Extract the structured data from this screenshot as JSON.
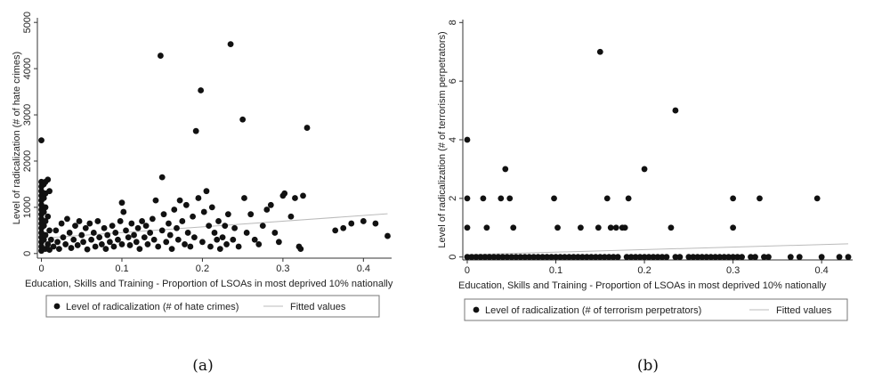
{
  "captions": [
    "(a)",
    "(b)"
  ],
  "chart_data": [
    {
      "type": "scatter",
      "xlabel": "Education, Skills and Training - Proportion of LSOAs in most deprived 10% nationally",
      "ylabel": "Level of radicalization (# of hate crimes)",
      "xlim": [
        -0.005,
        0.435
      ],
      "ylim": [
        -100,
        5100
      ],
      "xticks": [
        0,
        0.1,
        0.2,
        0.3,
        0.4
      ],
      "xtick_labels": [
        "0",
        "0.1",
        "0.2",
        "0.3",
        "0.4"
      ],
      "yticks": [
        0,
        1000,
        2000,
        3000,
        4000,
        5000
      ],
      "ytick_labels": [
        "0",
        "1000",
        "2000",
        "3000",
        "4000",
        "5000"
      ],
      "legend": {
        "placement": "bottom",
        "entries": [
          "Level of radicalization (# of hate crimes)",
          "Fitted values"
        ]
      },
      "fit": {
        "x": [
          0,
          0.43
        ],
        "y": [
          330,
          860
        ]
      },
      "series": [
        {
          "name": "Level of radicalization (# of hate crimes)",
          "points": [
            [
              0.0,
              2450
            ],
            [
              0.0,
              1550
            ],
            [
              0.0,
              1450
            ],
            [
              0.0,
              1350
            ],
            [
              0.0,
              1250
            ],
            [
              0.0,
              1150
            ],
            [
              0.0,
              1050
            ],
            [
              0.0,
              950
            ],
            [
              0.0,
              850
            ],
            [
              0.0,
              750
            ],
            [
              0.0,
              650
            ],
            [
              0.0,
              550
            ],
            [
              0.0,
              450
            ],
            [
              0.0,
              350
            ],
            [
              0.0,
              250
            ],
            [
              0.0,
              150
            ],
            [
              0.0,
              60
            ],
            [
              0.003,
              1500
            ],
            [
              0.003,
              1200
            ],
            [
              0.003,
              900
            ],
            [
              0.003,
              600
            ],
            [
              0.003,
              300
            ],
            [
              0.005,
              1550
            ],
            [
              0.005,
              1300
            ],
            [
              0.005,
              1000
            ],
            [
              0.005,
              700
            ],
            [
              0.005,
              400
            ],
            [
              0.005,
              100
            ],
            [
              0.008,
              1600
            ],
            [
              0.008,
              800
            ],
            [
              0.008,
              200
            ],
            [
              0.01,
              1350
            ],
            [
              0.01,
              500
            ],
            [
              0.01,
              80
            ],
            [
              0.012,
              300
            ],
            [
              0.015,
              150
            ],
            [
              0.018,
              500
            ],
            [
              0.02,
              250
            ],
            [
              0.022,
              100
            ],
            [
              0.025,
              650
            ],
            [
              0.027,
              350
            ],
            [
              0.03,
              200
            ],
            [
              0.032,
              750
            ],
            [
              0.035,
              450
            ],
            [
              0.037,
              120
            ],
            [
              0.04,
              300
            ],
            [
              0.042,
              600
            ],
            [
              0.045,
              180
            ],
            [
              0.047,
              700
            ],
            [
              0.05,
              400
            ],
            [
              0.052,
              250
            ],
            [
              0.055,
              550
            ],
            [
              0.057,
              90
            ],
            [
              0.06,
              650
            ],
            [
              0.062,
              300
            ],
            [
              0.065,
              450
            ],
            [
              0.067,
              150
            ],
            [
              0.07,
              700
            ],
            [
              0.072,
              350
            ],
            [
              0.075,
              200
            ],
            [
              0.078,
              550
            ],
            [
              0.08,
              100
            ],
            [
              0.082,
              400
            ],
            [
              0.085,
              250
            ],
            [
              0.088,
              600
            ],
            [
              0.09,
              150
            ],
            [
              0.092,
              450
            ],
            [
              0.095,
              300
            ],
            [
              0.098,
              700
            ],
            [
              0.1,
              200
            ],
            [
              0.1,
              1100
            ],
            [
              0.102,
              900
            ],
            [
              0.105,
              500
            ],
            [
              0.108,
              350
            ],
            [
              0.11,
              180
            ],
            [
              0.112,
              650
            ],
            [
              0.115,
              400
            ],
            [
              0.118,
              250
            ],
            [
              0.12,
              550
            ],
            [
              0.122,
              100
            ],
            [
              0.125,
              700
            ],
            [
              0.128,
              350
            ],
            [
              0.13,
              600
            ],
            [
              0.132,
              200
            ],
            [
              0.135,
              450
            ],
            [
              0.138,
              750
            ],
            [
              0.14,
              300
            ],
            [
              0.142,
              1150
            ],
            [
              0.145,
              150
            ],
            [
              0.148,
              4280
            ],
            [
              0.15,
              1650
            ],
            [
              0.15,
              500
            ],
            [
              0.152,
              850
            ],
            [
              0.155,
              250
            ],
            [
              0.158,
              650
            ],
            [
              0.16,
              400
            ],
            [
              0.162,
              100
            ],
            [
              0.165,
              950
            ],
            [
              0.168,
              550
            ],
            [
              0.17,
              300
            ],
            [
              0.172,
              1150
            ],
            [
              0.175,
              700
            ],
            [
              0.178,
              200
            ],
            [
              0.18,
              1050
            ],
            [
              0.182,
              450
            ],
            [
              0.185,
              150
            ],
            [
              0.188,
              800
            ],
            [
              0.19,
              350
            ],
            [
              0.192,
              2650
            ],
            [
              0.195,
              1200
            ],
            [
              0.198,
              3530
            ],
            [
              0.2,
              250
            ],
            [
              0.202,
              900
            ],
            [
              0.205,
              1350
            ],
            [
              0.208,
              600
            ],
            [
              0.21,
              150
            ],
            [
              0.212,
              1000
            ],
            [
              0.215,
              450
            ],
            [
              0.218,
              300
            ],
            [
              0.22,
              700
            ],
            [
              0.222,
              100
            ],
            [
              0.225,
              350
            ],
            [
              0.228,
              600
            ],
            [
              0.23,
              200
            ],
            [
              0.232,
              850
            ],
            [
              0.235,
              4530
            ],
            [
              0.238,
              300
            ],
            [
              0.24,
              550
            ],
            [
              0.245,
              150
            ],
            [
              0.25,
              2900
            ],
            [
              0.252,
              1200
            ],
            [
              0.255,
              450
            ],
            [
              0.26,
              850
            ],
            [
              0.265,
              300
            ],
            [
              0.27,
              200
            ],
            [
              0.275,
              600
            ],
            [
              0.28,
              950
            ],
            [
              0.285,
              1050
            ],
            [
              0.29,
              450
            ],
            [
              0.295,
              250
            ],
            [
              0.3,
              1250
            ],
            [
              0.302,
              1300
            ],
            [
              0.31,
              800
            ],
            [
              0.315,
              1200
            ],
            [
              0.32,
              150
            ],
            [
              0.322,
              100
            ],
            [
              0.325,
              1250
            ],
            [
              0.33,
              2720
            ],
            [
              0.365,
              500
            ],
            [
              0.375,
              550
            ],
            [
              0.385,
              650
            ],
            [
              0.4,
              700
            ],
            [
              0.415,
              650
            ],
            [
              0.43,
              380
            ]
          ]
        }
      ]
    },
    {
      "type": "scatter",
      "xlabel": "Education, Skills and Training - Proportion of LSOAs in most deprived 10% nationally",
      "ylabel": "Level of radicalization (# of terrorism perpetrators)",
      "xlim": [
        -0.005,
        0.435
      ],
      "ylim": [
        -0.1,
        8.1
      ],
      "xticks": [
        0,
        0.1,
        0.2,
        0.3,
        0.4
      ],
      "xtick_labels": [
        "0",
        "0.1",
        "0.2",
        "0.3",
        "0.4"
      ],
      "yticks": [
        0,
        2,
        4,
        6,
        8
      ],
      "ytick_labels": [
        "0",
        "2",
        "4",
        "6",
        "8"
      ],
      "legend": {
        "placement": "bottom",
        "entries": [
          "Level of radicalization (# of terrorism perpetrators)",
          "Fitted values"
        ]
      },
      "fit": {
        "x": [
          0,
          0.43
        ],
        "y": [
          0.08,
          0.45
        ]
      },
      "series": [
        {
          "name": "Level of radicalization (# of terrorism perpetrators)",
          "points": [
            [
              0.0,
              4
            ],
            [
              0.0,
              2
            ],
            [
              0.0,
              1
            ],
            [
              0.0,
              0
            ],
            [
              0.005,
              0
            ],
            [
              0.01,
              0
            ],
            [
              0.015,
              0
            ],
            [
              0.018,
              2
            ],
            [
              0.02,
              0
            ],
            [
              0.022,
              1
            ],
            [
              0.025,
              0
            ],
            [
              0.03,
              0
            ],
            [
              0.035,
              0
            ],
            [
              0.038,
              2
            ],
            [
              0.04,
              0
            ],
            [
              0.043,
              3
            ],
            [
              0.045,
              0
            ],
            [
              0.048,
              2
            ],
            [
              0.05,
              0
            ],
            [
              0.052,
              1
            ],
            [
              0.055,
              0
            ],
            [
              0.06,
              0
            ],
            [
              0.065,
              0
            ],
            [
              0.07,
              0
            ],
            [
              0.075,
              0
            ],
            [
              0.08,
              0
            ],
            [
              0.085,
              0
            ],
            [
              0.09,
              0
            ],
            [
              0.095,
              0
            ],
            [
              0.098,
              2
            ],
            [
              0.1,
              0
            ],
            [
              0.102,
              1
            ],
            [
              0.105,
              0
            ],
            [
              0.11,
              0
            ],
            [
              0.115,
              0
            ],
            [
              0.12,
              0
            ],
            [
              0.125,
              0
            ],
            [
              0.128,
              1
            ],
            [
              0.13,
              0
            ],
            [
              0.135,
              0
            ],
            [
              0.14,
              0
            ],
            [
              0.145,
              0
            ],
            [
              0.148,
              1
            ],
            [
              0.15,
              7
            ],
            [
              0.15,
              0
            ],
            [
              0.155,
              0
            ],
            [
              0.158,
              2
            ],
            [
              0.16,
              0
            ],
            [
              0.162,
              1
            ],
            [
              0.165,
              0
            ],
            [
              0.168,
              1
            ],
            [
              0.17,
              0
            ],
            [
              0.175,
              1
            ],
            [
              0.178,
              1
            ],
            [
              0.18,
              0
            ],
            [
              0.182,
              2
            ],
            [
              0.185,
              0
            ],
            [
              0.19,
              0
            ],
            [
              0.195,
              0
            ],
            [
              0.2,
              3
            ],
            [
              0.2,
              0
            ],
            [
              0.205,
              0
            ],
            [
              0.21,
              0
            ],
            [
              0.215,
              0
            ],
            [
              0.22,
              0
            ],
            [
              0.225,
              0
            ],
            [
              0.23,
              1
            ],
            [
              0.235,
              5
            ],
            [
              0.235,
              0
            ],
            [
              0.24,
              0
            ],
            [
              0.25,
              0
            ],
            [
              0.255,
              0
            ],
            [
              0.26,
              0
            ],
            [
              0.265,
              0
            ],
            [
              0.27,
              0
            ],
            [
              0.275,
              0
            ],
            [
              0.28,
              0
            ],
            [
              0.285,
              0
            ],
            [
              0.29,
              0
            ],
            [
              0.295,
              0
            ],
            [
              0.3,
              2
            ],
            [
              0.3,
              1
            ],
            [
              0.3,
              0
            ],
            [
              0.305,
              0
            ],
            [
              0.31,
              0
            ],
            [
              0.32,
              0
            ],
            [
              0.325,
              0
            ],
            [
              0.33,
              2
            ],
            [
              0.335,
              0
            ],
            [
              0.34,
              0
            ],
            [
              0.365,
              0
            ],
            [
              0.375,
              0
            ],
            [
              0.395,
              2
            ],
            [
              0.4,
              0
            ],
            [
              0.42,
              0
            ],
            [
              0.43,
              0
            ]
          ]
        }
      ]
    }
  ]
}
